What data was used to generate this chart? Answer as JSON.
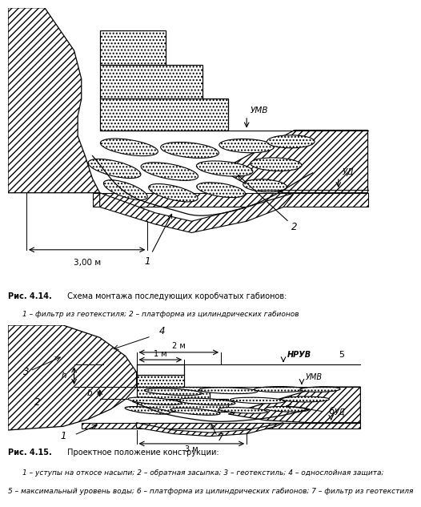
{
  "bg_color": "#ffffff",
  "fig_title_14_bold": "Рис. 4.14.",
  "fig_title_14_normal": " Схема монтажа последующих коробчатых габионов:",
  "fig_caption_14": "1 – фильтр из геотекстиля; 2 – платформа из цилиндрических габионов",
  "fig_title_15_bold": "Рис. 4.15.",
  "fig_title_15_normal": " Проектное положение конструкции:",
  "fig_caption_15a": "1 – уступы на откосе насыпи; 2 – обратная засыпка; 3 – геотекстиль; 4 – однослойная защита;",
  "fig_caption_15b": "5 – максимальный уровень воды; 6 – платформа из цилиндрических габионов; 7 – фильтр из геотекстиля",
  "label_UMV_1": "УМВ",
  "label_UD_1": "УД",
  "label_1_1": "1",
  "label_2_1": "2",
  "dim_300": "3,00 м",
  "label_NRUV": "НРУВ",
  "label_UMV_2": "УМВ",
  "label_UD_2": "УД",
  "label_1_2": "1",
  "label_2_2": "2",
  "label_3": "3",
  "label_4": "4",
  "label_5": "5",
  "label_6": "6",
  "label_7": "7",
  "label_h": "h",
  "label_b": "b",
  "dim_2m": "2 м",
  "dim_1m": "1 м",
  "dim_3m": "3 м"
}
